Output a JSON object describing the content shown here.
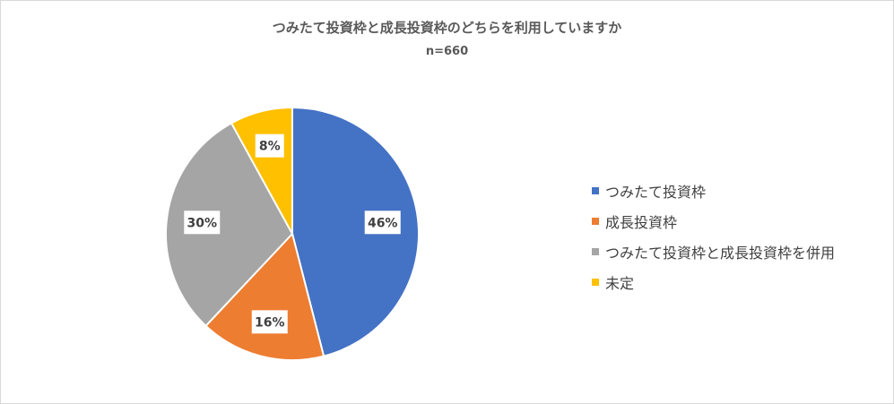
{
  "chart_data": {
    "type": "pie",
    "title": "つみたて投資枠と成長投資枠のどちらを利用していますか",
    "subtitle": "n=660",
    "legend_position": "right",
    "slices": [
      {
        "name": "つみたて投資枠",
        "value": 46,
        "label": "46%",
        "color": "#4472C4"
      },
      {
        "name": "成長投資枠",
        "value": 16,
        "label": "16%",
        "color": "#ED7D31"
      },
      {
        "name": "つみたて投資枠と成長投資枠を併用",
        "value": 30,
        "label": "30%",
        "color": "#A5A5A5"
      },
      {
        "name": "未定",
        "value": 8,
        "label": "8%",
        "color": "#FFC000"
      }
    ]
  }
}
